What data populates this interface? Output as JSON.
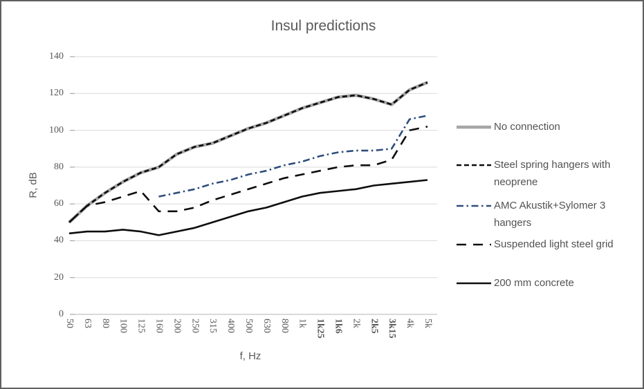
{
  "window": {
    "background": "#ffffff",
    "border_color": "#5f5f5f"
  },
  "chart_data": {
    "type": "line",
    "title": "Insul predictions",
    "xlabel": "f, Hz",
    "ylabel": "R, dB",
    "ylim": [
      0,
      140
    ],
    "yticks": [
      0,
      20,
      40,
      60,
      80,
      100,
      120,
      140
    ],
    "grid": true,
    "legend_position": "right",
    "categories": [
      "50",
      "63",
      "80",
      "100",
      "125",
      "160",
      "200",
      "250",
      "315",
      "400",
      "500",
      "630",
      "800",
      "1k",
      "1k25",
      "1k6",
      "2k",
      "2k5",
      "3k15",
      "4k",
      "5k"
    ],
    "bold_categories": [
      "1k25",
      "1k6",
      "2k5",
      "3k15"
    ],
    "series": [
      {
        "name": "No connection",
        "color": "#a6a6a6",
        "style": "solid",
        "width": 4.6,
        "values": [
          50,
          59,
          66,
          72,
          77,
          80,
          87,
          91,
          93,
          97,
          101,
          104,
          108,
          112,
          115,
          118,
          119,
          117,
          114,
          122,
          126
        ]
      },
      {
        "name": "Steel spring hangers with neoprene",
        "color": "#0d0d0d",
        "style": "dash",
        "width": 2.6,
        "values": [
          50,
          59,
          66,
          72,
          77,
          80,
          87,
          91,
          93,
          97,
          101,
          104,
          108,
          112,
          115,
          118,
          119,
          117,
          114,
          122,
          126
        ]
      },
      {
        "name": "AMC Akustik+Sylomer 3 hangers",
        "color": "#2e4d7b",
        "style": "dash-dot",
        "width": 2.6,
        "values": [
          null,
          null,
          null,
          null,
          null,
          64,
          66,
          68,
          71,
          73,
          76,
          78,
          81,
          83,
          86,
          88,
          89,
          89,
          90,
          106,
          108
        ]
      },
      {
        "name": "Suspended light steel grid",
        "color": "#0d0d0d",
        "style": "long-dash",
        "width": 2.6,
        "values": [
          50,
          59,
          61,
          64,
          67,
          56,
          56,
          58,
          62,
          65,
          68,
          71,
          74,
          76,
          78,
          80,
          81,
          81,
          84,
          100,
          102
        ]
      },
      {
        "name": "200 mm concrete",
        "color": "#0d0d0d",
        "style": "solid",
        "width": 2.6,
        "values": [
          44,
          45,
          45,
          46,
          45,
          43,
          45,
          47,
          50,
          53,
          56,
          58,
          61,
          64,
          66,
          67,
          68,
          70,
          71,
          72,
          73
        ]
      }
    ]
  },
  "colors": {
    "gridline": "#d9d9d9",
    "axis_line": "#b3b3b3",
    "tick_mark": "#a6a6a6",
    "tick_label": "#595959",
    "title": "#595959",
    "legend_text": "#525252"
  }
}
